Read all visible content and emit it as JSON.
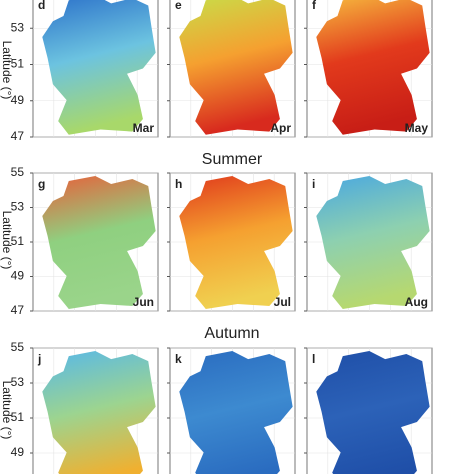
{
  "y_axis_label": "Latitude (°)",
  "ylim": [
    47,
    55
  ],
  "rows": [
    {
      "yticks": [
        53,
        51,
        49,
        47
      ],
      "panels": [
        {
          "letter": "d",
          "month": "Mar"
        },
        {
          "letter": "e",
          "month": "Apr"
        },
        {
          "letter": "f",
          "month": "May"
        }
      ]
    },
    {
      "title": "Summer",
      "yticks": [
        55,
        53,
        51,
        49,
        47
      ],
      "panels": [
        {
          "letter": "g",
          "month": "Jun"
        },
        {
          "letter": "h",
          "month": "Jul"
        },
        {
          "letter": "i",
          "month": "Aug"
        }
      ]
    },
    {
      "title": "Autumn",
      "yticks": [
        55,
        53,
        51,
        49
      ],
      "panels": [
        {
          "letter": "j"
        },
        {
          "letter": "k"
        },
        {
          "letter": "l"
        }
      ]
    }
  ]
}
